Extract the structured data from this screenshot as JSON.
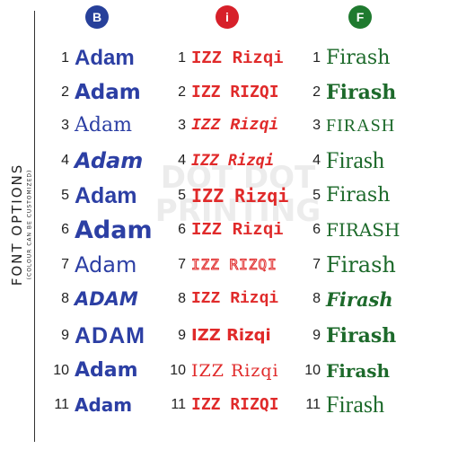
{
  "side": {
    "title": "FONT OPTIONS",
    "subtitle": "(COLOUR CAN BE CUSTOMIZED)"
  },
  "watermark": "DOT DOT PRINTING",
  "columns": [
    {
      "key": "b",
      "badge": "B",
      "color": "#2c3fa4",
      "rows": [
        {
          "num": "1",
          "text": "Adam"
        },
        {
          "num": "2",
          "text": "Adam"
        },
        {
          "num": "3",
          "text": "Adam"
        },
        {
          "num": "4",
          "text": "Adam"
        },
        {
          "num": "5",
          "text": "Adam"
        },
        {
          "num": "6",
          "text": "Adam"
        },
        {
          "num": "7",
          "text": "Adam"
        },
        {
          "num": "8",
          "text": "ADAM"
        },
        {
          "num": "9",
          "text": "ADAM"
        },
        {
          "num": "10",
          "text": "Adam"
        },
        {
          "num": "11",
          "text": "Adam"
        }
      ]
    },
    {
      "key": "i",
      "badge": "i",
      "color": "#e02a2a",
      "rows": [
        {
          "num": "1",
          "text": "IZZ Rizqi"
        },
        {
          "num": "2",
          "text": "IZZ RIZQI"
        },
        {
          "num": "3",
          "text": "IZZ Rizqi"
        },
        {
          "num": "4",
          "text": "IZZ Rizqi"
        },
        {
          "num": "5",
          "text": "IZZ Rizqi"
        },
        {
          "num": "6",
          "text": "IZZ Rizqi"
        },
        {
          "num": "7",
          "text": "IZZ RIZQI"
        },
        {
          "num": "8",
          "text": "IZZ Rizqi"
        },
        {
          "num": "9",
          "text": "IZZ Rizqi"
        },
        {
          "num": "10",
          "text": "IZZ Rizqi"
        },
        {
          "num": "11",
          "text": "IZZ RIZQI"
        }
      ]
    },
    {
      "key": "f",
      "badge": "F",
      "color": "#1d6a2b",
      "rows": [
        {
          "num": "1",
          "text": "Firash"
        },
        {
          "num": "2",
          "text": "Firash"
        },
        {
          "num": "3",
          "text": "FIRASH"
        },
        {
          "num": "4",
          "text": "Firash"
        },
        {
          "num": "5",
          "text": "Firash"
        },
        {
          "num": "6",
          "text": "FIRASH"
        },
        {
          "num": "7",
          "text": "Firash"
        },
        {
          "num": "8",
          "text": "Firash"
        },
        {
          "num": "9",
          "text": "Firash"
        },
        {
          "num": "10",
          "text": "Firash"
        },
        {
          "num": "11",
          "text": "Firash"
        }
      ]
    }
  ]
}
